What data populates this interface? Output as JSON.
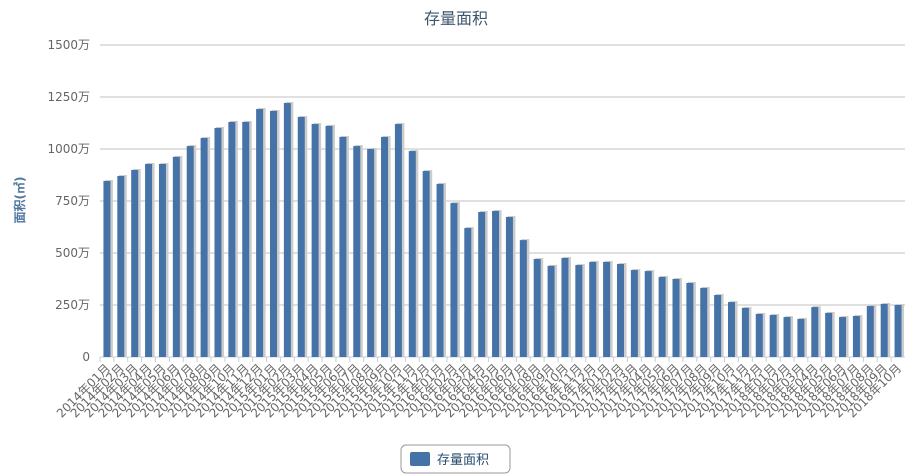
{
  "chart_data": {
    "type": "bar",
    "title": "存量面积",
    "y_label": "面积(㎡)",
    "categories": [
      "2014年01月",
      "2014年02月",
      "2014年03月",
      "2014年04月",
      "2014年05月",
      "2014年06月",
      "2014年07月",
      "2014年08月",
      "2014年09月",
      "2014年10月",
      "2014年11月",
      "2014年12月",
      "2015年01月",
      "2015年02月",
      "2015年03月",
      "2015年04月",
      "2015年05月",
      "2015年06月",
      "2015年07月",
      "2015年08月",
      "2015年09月",
      "2015年10月",
      "2015年11月",
      "2015年12月",
      "2016年01月",
      "2016年02月",
      "2016年03月",
      "2016年04月",
      "2016年05月",
      "2016年06月",
      "2016年07月",
      "2016年08月",
      "2016年09月",
      "2016年10月",
      "2016年11月",
      "2016年12月",
      "2017年01月",
      "2017年02月",
      "2017年03月",
      "2017年04月",
      "2017年05月",
      "2017年06月",
      "2017年07月",
      "2017年08月",
      "2017年09月",
      "2017年10月",
      "2017年11月",
      "2017年12月",
      "2018年01月",
      "2018年02月",
      "2018年03月",
      "2018年04月",
      "2018年05月",
      "2018年06月",
      "2018年07月",
      "2018年08月",
      "2018年09月",
      "2018年10月"
    ],
    "series": [
      {
        "name": "存量面积",
        "color": "#4572a7",
        "values": [
          846,
          870,
          899,
          928,
          928,
          962,
          1014,
          1053,
          1101,
          1130,
          1130,
          1192,
          1183,
          1221,
          1154,
          1120,
          1111,
          1058,
          1014,
          1000,
          1058,
          1120,
          990,
          894,
          832,
          740,
          620,
          697,
          702,
          673,
          562,
          471,
          438,
          476,
          442,
          457,
          457,
          447,
          418,
          413,
          385,
          375,
          356,
          332,
          298,
          264,
          236,
          207,
          202,
          192,
          183,
          240,
          212,
          192,
          197,
          245,
          255,
          250
        ]
      }
    ],
    "ylim": [
      0,
      1500
    ],
    "yticks": [
      0,
      {
        "value": 250,
        "label": "250万"
      },
      {
        "value": 500,
        "label": "500万"
      },
      {
        "value": 750,
        "label": "750万"
      },
      {
        "value": 1000,
        "label": "1000万"
      },
      {
        "value": 1250,
        "label": "1250万"
      },
      {
        "value": 1500,
        "label": "1500万"
      }
    ],
    "grid": true
  }
}
